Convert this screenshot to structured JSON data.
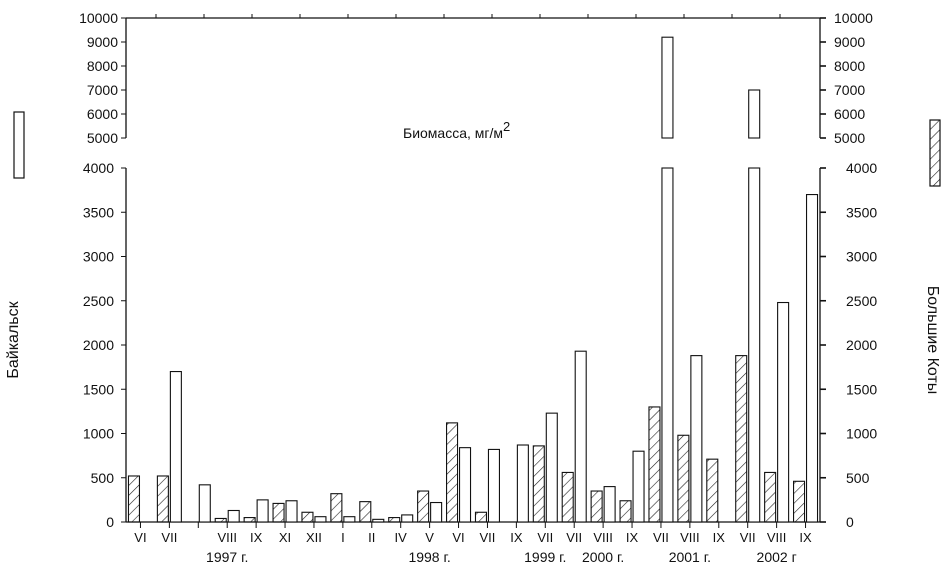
{
  "chart_data": {
    "type": "bar",
    "annotation": "Биомасса, мг/м",
    "annotation_sup": "2",
    "ylabel_left": "Байкальск",
    "ylabel_right": "Большие Коты",
    "upper_panel_range": [
      5000,
      10000
    ],
    "upper_ticks_left": [
      "10000",
      "9000",
      "8000",
      "7000",
      "6000",
      "5000"
    ],
    "upper_ticks_right": [
      "10000",
      "9000",
      "8000",
      "7000",
      "6000",
      "5000"
    ],
    "lower_panel_range": [
      0,
      4000
    ],
    "lower_ticks_left": [
      "4000",
      "3500",
      "3000",
      "2500",
      "2000",
      "1500",
      "1000",
      "500",
      "0"
    ],
    "lower_ticks_right": [
      "4000",
      "3500",
      "3000",
      "2500",
      "2000",
      "1500",
      "1000",
      "500",
      "0"
    ],
    "series": [
      {
        "name": "Байкальск",
        "pattern": "open"
      },
      {
        "name": "Большие Коты",
        "pattern": "hatched"
      }
    ],
    "categories": [
      {
        "label": "VI",
        "baikalsk": null,
        "koty": 520
      },
      {
        "label": "VII",
        "baikalsk": 1700,
        "koty": 520
      },
      {
        "label": "",
        "baikalsk": 420,
        "koty": null
      },
      {
        "label": "VIII",
        "baikalsk": 130,
        "koty": 40
      },
      {
        "label": "IX",
        "baikalsk": 250,
        "koty": 50
      },
      {
        "label": "XI",
        "baikalsk": 240,
        "koty": 210
      },
      {
        "label": "XII",
        "baikalsk": 60,
        "koty": 110
      },
      {
        "label": "I",
        "baikalsk": 60,
        "koty": 320
      },
      {
        "label": "II",
        "baikalsk": 30,
        "koty": 230
      },
      {
        "label": "IV",
        "baikalsk": 80,
        "koty": 50
      },
      {
        "label": "V",
        "baikalsk": 220,
        "koty": 350
      },
      {
        "label": "VI",
        "baikalsk": 840,
        "koty": 1120
      },
      {
        "label": "VII",
        "baikalsk": 820,
        "koty": 110
      },
      {
        "label": "IX",
        "baikalsk": 870,
        "koty": null
      },
      {
        "label": "VII",
        "baikalsk": 1230,
        "koty": 860
      },
      {
        "label": "VII",
        "baikalsk": 1930,
        "koty": 560
      },
      {
        "label": "VIII",
        "baikalsk": 400,
        "koty": 350
      },
      {
        "label": "IX",
        "baikalsk": 800,
        "koty": 240
      },
      {
        "label": "VII",
        "baikalsk": 9200,
        "koty": 1300
      },
      {
        "label": "VIII",
        "baikalsk": 1880,
        "koty": 980
      },
      {
        "label": "IX",
        "baikalsk": null,
        "koty": 710
      },
      {
        "label": "VII",
        "baikalsk": 7000,
        "koty": 1880
      },
      {
        "label": "VIII",
        "baikalsk": 2480,
        "koty": 560
      },
      {
        "label": "IX",
        "baikalsk": 3700,
        "koty": 460
      }
    ],
    "year_labels": [
      {
        "label": "1997 г.",
        "under": [
          0,
          6
        ]
      },
      {
        "label": "1998 г.",
        "under": [
          7,
          13
        ]
      },
      {
        "label": "1999 г.",
        "under": [
          14,
          14
        ]
      },
      {
        "label": "2000 г.",
        "under": [
          15,
          17
        ]
      },
      {
        "label": "2001 г.",
        "under": [
          18,
          20
        ]
      },
      {
        "label": "2002 г",
        "under": [
          21,
          23
        ]
      }
    ]
  }
}
